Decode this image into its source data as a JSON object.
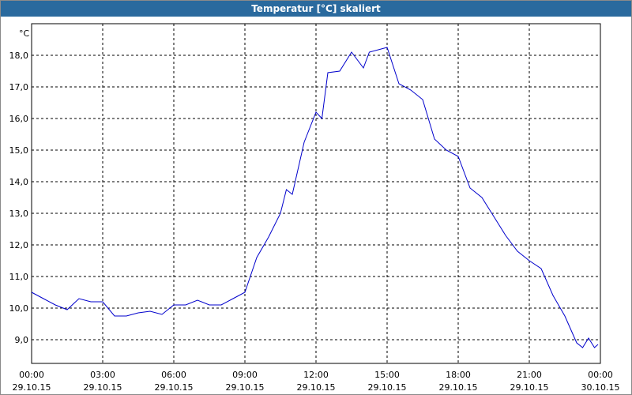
{
  "chart_data": {
    "type": "line",
    "title": "Temperatur [°C] skaliert",
    "y_unit": "°C",
    "x": [
      0,
      0.5,
      1,
      1.5,
      2,
      2.5,
      3,
      3.5,
      4,
      4.5,
      5,
      5.5,
      6,
      6.5,
      7,
      7.5,
      8,
      8.5,
      9,
      9.5,
      10,
      10.5,
      10.75,
      11,
      11.5,
      12,
      12.25,
      12.5,
      13,
      13.5,
      14,
      14.25,
      15,
      15.5,
      16,
      16.5,
      17,
      17.5,
      18,
      18.5,
      19,
      19.5,
      20,
      20.5,
      21,
      21.5,
      22,
      22.5,
      23,
      23.25,
      23.5,
      23.75,
      23.9
    ],
    "series": [
      {
        "name": "Temperatur",
        "color": "#0000cc",
        "values": [
          10.5,
          10.3,
          10.1,
          9.95,
          10.3,
          10.2,
          10.2,
          9.75,
          9.75,
          9.85,
          9.9,
          9.8,
          10.1,
          10.1,
          10.25,
          10.1,
          10.1,
          10.3,
          10.5,
          11.6,
          12.25,
          13.0,
          13.75,
          13.6,
          15.25,
          16.2,
          16.0,
          17.45,
          17.5,
          18.1,
          17.6,
          18.1,
          18.25,
          17.1,
          16.9,
          16.6,
          15.35,
          15.0,
          14.8,
          13.8,
          13.5,
          12.9,
          12.3,
          11.8,
          11.5,
          11.25,
          10.4,
          9.75,
          8.9,
          8.75,
          9.05,
          8.75,
          8.85
        ]
      }
    ],
    "xlim": [
      0,
      24
    ],
    "xticks": [
      {
        "value": 0,
        "label": "00:00",
        "date": "29.10.15"
      },
      {
        "value": 3,
        "label": "03:00",
        "date": "29.10.15"
      },
      {
        "value": 6,
        "label": "06:00",
        "date": "29.10.15"
      },
      {
        "value": 9,
        "label": "09:00",
        "date": "29.10.15"
      },
      {
        "value": 12,
        "label": "12:00",
        "date": "29.10.15"
      },
      {
        "value": 15,
        "label": "15:00",
        "date": "29.10.15"
      },
      {
        "value": 18,
        "label": "18:00",
        "date": "29.10.15"
      },
      {
        "value": 21,
        "label": "21:00",
        "date": "29.10.15"
      },
      {
        "value": 24,
        "label": "00:00",
        "date": "30.10.15"
      }
    ],
    "ylim": [
      8.25,
      19.0
    ],
    "yticks": [
      {
        "value": 9,
        "label": "9,0"
      },
      {
        "value": 10,
        "label": "10,0"
      },
      {
        "value": 11,
        "label": "11,0"
      },
      {
        "value": 12,
        "label": "12,0"
      },
      {
        "value": 13,
        "label": "13,0"
      },
      {
        "value": 14,
        "label": "14,0"
      },
      {
        "value": 15,
        "label": "15,0"
      },
      {
        "value": 16,
        "label": "16,0"
      },
      {
        "value": 17,
        "label": "17,0"
      },
      {
        "value": 18,
        "label": "18,0"
      }
    ],
    "grid": true
  }
}
